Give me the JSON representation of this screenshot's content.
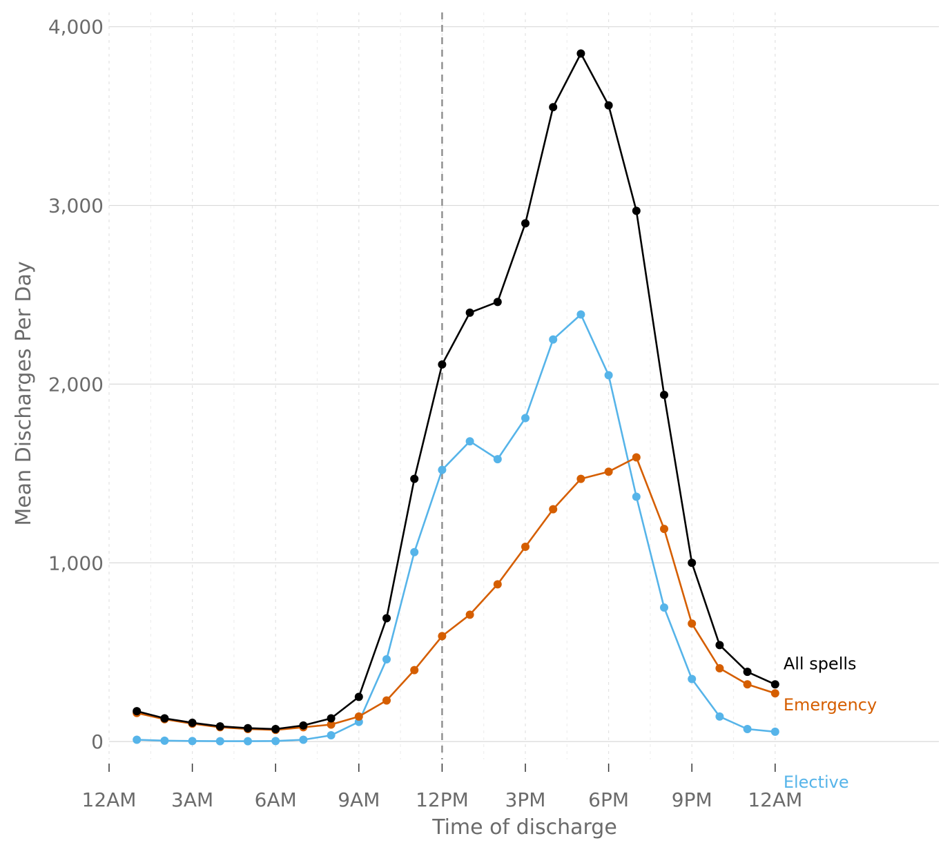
{
  "chart_data": {
    "type": "line",
    "xlabel": "Time of discharge",
    "ylabel": "Mean Discharges Per Day",
    "x_ticks": [
      {
        "hour": 0,
        "label": "12AM"
      },
      {
        "hour": 3,
        "label": "3AM"
      },
      {
        "hour": 6,
        "label": "6AM"
      },
      {
        "hour": 9,
        "label": "9AM"
      },
      {
        "hour": 12,
        "label": "12PM"
      },
      {
        "hour": 15,
        "label": "3PM"
      },
      {
        "hour": 18,
        "label": "6PM"
      },
      {
        "hour": 21,
        "label": "9PM"
      },
      {
        "hour": 24,
        "label": "12AM"
      }
    ],
    "y_ticks": [
      {
        "value": 0,
        "label": "0"
      },
      {
        "value": 1000,
        "label": "1,000"
      },
      {
        "value": 2000,
        "label": "2,000"
      },
      {
        "value": 3000,
        "label": "3,000"
      },
      {
        "value": 4000,
        "label": "4,000"
      }
    ],
    "xlim": [
      0,
      29.9
    ],
    "ylim": [
      -100,
      4080
    ],
    "reference_line_hour": 12,
    "x": [
      1,
      2,
      3,
      4,
      5,
      6,
      7,
      8,
      9,
      10,
      11,
      12,
      13,
      14,
      15,
      16,
      17,
      18,
      19,
      20,
      21,
      22,
      23,
      24
    ],
    "series": [
      {
        "name": "All spells",
        "color": "#000000",
        "values": [
          170,
          130,
          105,
          85,
          75,
          70,
          90,
          130,
          250,
          690,
          1470,
          2110,
          2400,
          2460,
          2900,
          3550,
          3850,
          3560,
          2970,
          1940,
          1000,
          540,
          390,
          320
        ]
      },
      {
        "name": "Emergency",
        "color": "#d55e00",
        "values": [
          160,
          125,
          100,
          80,
          70,
          65,
          80,
          95,
          140,
          230,
          400,
          590,
          710,
          880,
          1090,
          1300,
          1470,
          1510,
          1590,
          1190,
          660,
          410,
          320,
          270
        ]
      },
      {
        "name": "Elective",
        "color": "#56b4e9",
        "values": [
          10,
          5,
          3,
          2,
          2,
          3,
          10,
          35,
          110,
          460,
          1060,
          1520,
          1680,
          1580,
          1810,
          2250,
          2390,
          2050,
          1370,
          750,
          350,
          140,
          70,
          55
        ]
      }
    ]
  }
}
